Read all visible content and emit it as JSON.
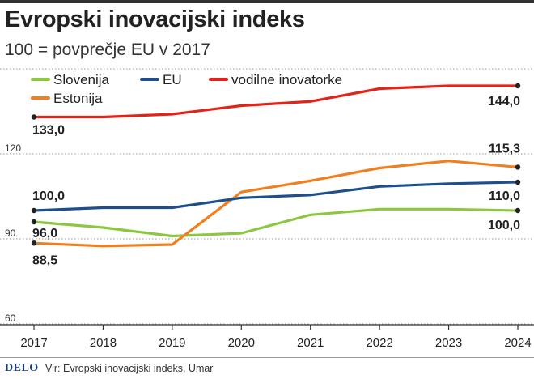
{
  "header": {
    "title": "Evropski inovacijski indeks",
    "subtitle": "100 = povprečje EU v 2017"
  },
  "footer": {
    "logo": "DELO",
    "source": "Vir: Evropski inovacijski indeks, Umar"
  },
  "chart_data": {
    "type": "line",
    "x": [
      "2017",
      "2018",
      "2019",
      "2020",
      "2021",
      "2022",
      "2023",
      "2024"
    ],
    "ylim": [
      60,
      150
    ],
    "yticks": [
      60,
      90,
      120
    ],
    "grid": "horizontal dotted",
    "legend_position": "top-left",
    "series": [
      {
        "name": "Slovenija",
        "color": "#8dc63f",
        "values": [
          96.0,
          94.0,
          91.0,
          92.0,
          98.5,
          100.5,
          100.5,
          100.0
        ],
        "start_label": "96,0",
        "end_label": "100,0"
      },
      {
        "name": "EU",
        "color": "#1f4e8c",
        "values": [
          100.0,
          101.0,
          101.0,
          104.5,
          105.5,
          108.5,
          109.5,
          110.0
        ],
        "start_label": "100,0",
        "end_label": "110,0"
      },
      {
        "name": "vodilne inovatorke",
        "color": "#e2231a",
        "values": [
          133.0,
          133.0,
          134.0,
          137.0,
          138.5,
          143.0,
          144.0,
          144.0
        ],
        "start_label": "133,0",
        "end_label": "144,0"
      },
      {
        "name": "Estonija",
        "color": "#f07f20",
        "values": [
          88.5,
          87.5,
          88.0,
          106.5,
          110.5,
          115.0,
          117.5,
          115.3
        ],
        "start_label": "88,5",
        "end_label": "115,3"
      }
    ]
  }
}
